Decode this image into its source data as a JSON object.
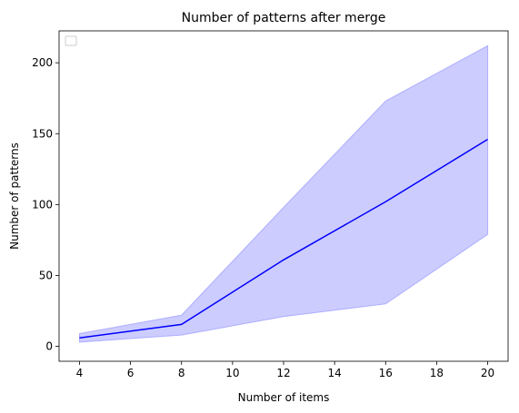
{
  "chart_data": {
    "type": "line",
    "title": "Number of patterns after merge",
    "xlabel": "Number of items",
    "ylabel": "Number of patterns",
    "x": [
      4,
      8,
      12,
      16,
      20
    ],
    "series": [
      {
        "values": [
          6,
          15.5,
          61,
          102,
          146
        ],
        "lower": [
          3,
          8,
          21,
          30,
          79
        ],
        "upper": [
          9,
          22,
          98,
          173,
          212
        ],
        "color": "#0000ff",
        "band_color": "#ccccff"
      }
    ],
    "xlim": [
      3.2,
      20.8
    ],
    "ylim": [
      -10.5,
      222.5
    ],
    "xticks": [
      "4",
      "6",
      "8",
      "10",
      "12",
      "14",
      "16",
      "18",
      "20"
    ],
    "yticks": [
      "0",
      "50",
      "100",
      "150",
      "200"
    ],
    "grid": false,
    "legend": "top-left"
  }
}
